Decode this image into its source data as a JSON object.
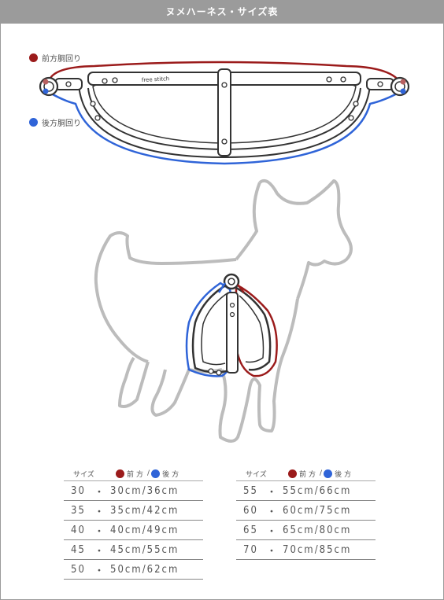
{
  "title": "ヌメハーネス・サイズ表",
  "legend": {
    "front_label": "前方胴回り",
    "back_label": "後方胴回り",
    "front_color": "#9b1b1b",
    "back_color": "#2f64d8"
  },
  "strap_text": "free stitch",
  "table": {
    "header_size": "サイズ",
    "header_front": "前方",
    "header_slash": "/",
    "header_back": "後方",
    "separator": "・",
    "left_rows": [
      {
        "size": "30",
        "value": "30cm/36cm"
      },
      {
        "size": "35",
        "value": "35cm/42cm"
      },
      {
        "size": "40",
        "value": "40cm/49cm"
      },
      {
        "size": "45",
        "value": "45cm/55cm"
      },
      {
        "size": "50",
        "value": "50cm/62cm"
      }
    ],
    "right_rows": [
      {
        "size": "55",
        "value": "55cm/66cm"
      },
      {
        "size": "60",
        "value": "60cm/75cm"
      },
      {
        "size": "65",
        "value": "65cm/80cm"
      },
      {
        "size": "70",
        "value": "70cm/85cm"
      }
    ]
  }
}
